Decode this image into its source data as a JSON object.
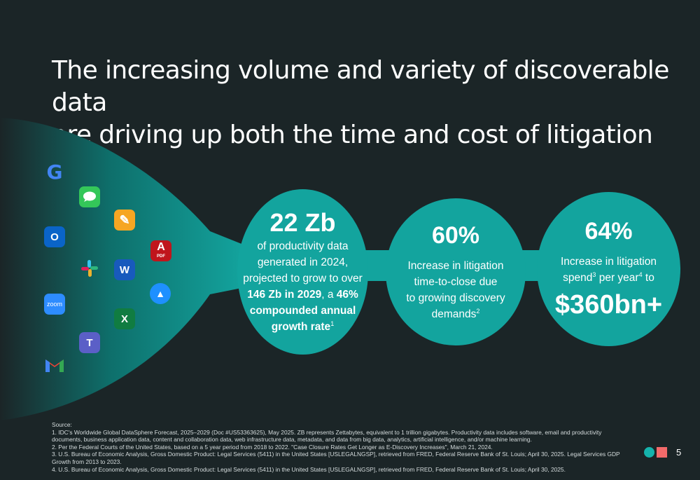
{
  "title_lines": [
    "The increasing volume and variety of discoverable data",
    "are driving up both the time and cost of litigation"
  ],
  "colors": {
    "background": "#1b2527",
    "teal": "#13a49e",
    "accent_red": "#f26a6a"
  },
  "apps": [
    {
      "name": "google-icon",
      "glyph": "G"
    },
    {
      "name": "messages-icon",
      "glyph": "…"
    },
    {
      "name": "pages-icon",
      "glyph": "✎"
    },
    {
      "name": "outlook-icon",
      "glyph": "O"
    },
    {
      "name": "adobe-pdf-icon",
      "glyph": "A"
    },
    {
      "name": "slack-icon",
      "glyph": "#"
    },
    {
      "name": "word-icon",
      "glyph": "W"
    },
    {
      "name": "keynote-icon",
      "glyph": "▲"
    },
    {
      "name": "zoom-icon",
      "glyph": "zoom"
    },
    {
      "name": "excel-icon",
      "glyph": "X"
    },
    {
      "name": "teams-icon",
      "glyph": "T"
    },
    {
      "name": "gmail-icon",
      "glyph": "M"
    }
  ],
  "stat1": {
    "value": "22 Zb",
    "line1": "of productivity data",
    "line2": "generated in 2024,",
    "line3": "projected to grow to over",
    "line4_bold": "146 Zb in 2029",
    "line4_rest": ", a ",
    "line4_bold2": "46%",
    "line5": "compounded annual",
    "line6": "growth rate",
    "line6_sup": "1"
  },
  "stat2": {
    "value": "60%",
    "line1": "Increase in litigation",
    "line2": "time-to-close due",
    "line3": "to growing discovery",
    "line4": "demands",
    "line4_sup": "2"
  },
  "stat3": {
    "value": "64%",
    "line1": "Increase in litigation",
    "line2a": "spend",
    "sup_a": "3",
    "line2b": " per year",
    "sup_b": "4",
    "line2c": " to",
    "money": "$360bn+"
  },
  "sources": {
    "heading": "Source:",
    "items": [
      "1. IDC's Worldwide Global DataSphere Forecast, 2025–2029 (Doc #US53363625), May 2025. ZB represents Zettabytes, equivalent to 1 trillion gigabytes. Productivity data includes software, email and productivity documents, business application data, content and collaboration data, web infrastructure data, metadata, and data from big data, analytics, artificial intelligence, and/or machine learning.",
      "2. Per the Federal Courts of the United States, based on a 5 year period from 2018 to 2022. \"Case Closure Rates Get Longer as E-Discovery Increases\", March 21, 2024.",
      "3. U.S. Bureau of Economic Analysis, Gross Domestic Product: Legal Services (5411) in the United States [USLEGALNGSP], retrieved from FRED, Federal Reserve Bank of St. Louis; April 30, 2025. Legal Services GDP Growth from 2013 to 2023.",
      "4. U.S. Bureau of Economic Analysis, Gross Domestic Product: Legal Services (5411) in the United States [USLEGALNGSP], retrieved from FRED, Federal Reserve Bank of St. Louis; April 30, 2025."
    ]
  },
  "page_number": "5"
}
